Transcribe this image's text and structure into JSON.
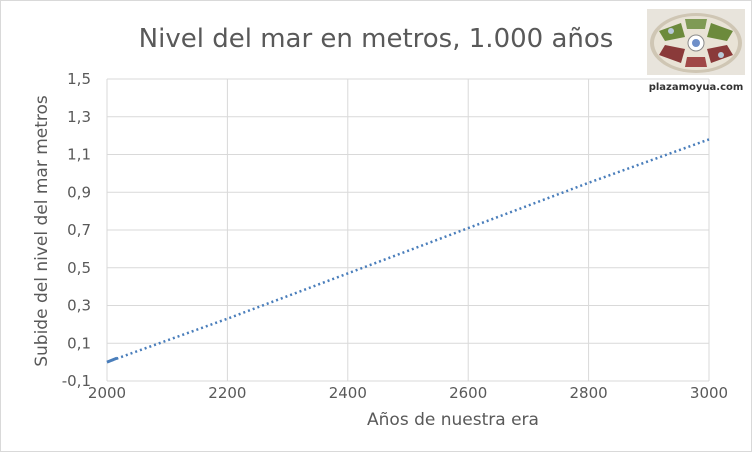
{
  "chart_data": {
    "type": "line",
    "title": "Nivel del mar en metros, 1.000 años",
    "xlabel": "Años de nuestra era",
    "ylabel": "Subide del nivel del mar metros",
    "xlim": [
      2000,
      3000
    ],
    "ylim": [
      -0.1,
      1.5
    ],
    "x_ticks": [
      2000,
      2200,
      2400,
      2600,
      2800,
      3000
    ],
    "y_ticks": [
      -0.1,
      0.1,
      0.3,
      0.5,
      0.7,
      0.9,
      1.1,
      1.3,
      1.5
    ],
    "x_tick_labels": [
      "2000",
      "2200",
      "2400",
      "2600",
      "2800",
      "3000"
    ],
    "y_tick_labels": [
      "-0,1",
      "0,1",
      "0,3",
      "0,5",
      "0,7",
      "0,9",
      "1,1",
      "1,3",
      "1,5"
    ],
    "grid": true,
    "legend": "none",
    "series": [
      {
        "color": "#4a7ebb",
        "line_style": "dotted",
        "x": [
          2000,
          2100,
          2200,
          2300,
          2400,
          2500,
          2600,
          2700,
          2800,
          2900,
          3000
        ],
        "y": [
          0.0,
          0.115,
          0.23,
          0.35,
          0.47,
          0.59,
          0.71,
          0.83,
          0.95,
          1.065,
          1.18
        ]
      }
    ]
  },
  "logo": {
    "text": "plazamoyua.com",
    "icon": "plaza-aerial-logo-icon"
  },
  "colors": {
    "grid": "#d9d9d9",
    "text": "#595959",
    "series": "#4a7ebb"
  }
}
